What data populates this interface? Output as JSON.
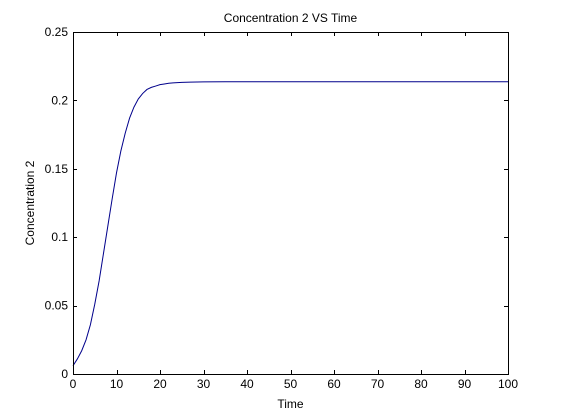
{
  "chart_data": {
    "type": "line",
    "title": "Concentration 2 VS Time",
    "xlabel": "Time",
    "ylabel": "Concentration 2",
    "xlim": [
      0,
      100
    ],
    "ylim": [
      0,
      0.25
    ],
    "grid": false,
    "x_ticks": [
      0,
      10,
      20,
      30,
      40,
      50,
      60,
      70,
      80,
      90,
      100
    ],
    "x_tick_labels": [
      "0",
      "10",
      "20",
      "30",
      "40",
      "50",
      "60",
      "70",
      "80",
      "90",
      "100"
    ],
    "y_ticks": [
      0,
      0.05,
      0.1,
      0.15,
      0.2,
      0.25
    ],
    "y_tick_labels": [
      "0",
      "0.05",
      "0.1",
      "0.15",
      "0.2",
      "0.25"
    ],
    "series": [
      {
        "color": "#00008b",
        "x": [
          0,
          1,
          2,
          3,
          4,
          5,
          6,
          7,
          8,
          9,
          10,
          11,
          12,
          13,
          14,
          15,
          16,
          17,
          18,
          19,
          20,
          21,
          22,
          23,
          24,
          25,
          27,
          30,
          35,
          40,
          50,
          60,
          70,
          80,
          90,
          100
        ],
        "y": [
          0.006,
          0.011,
          0.017,
          0.025,
          0.036,
          0.051,
          0.068,
          0.088,
          0.108,
          0.128,
          0.147,
          0.163,
          0.176,
          0.187,
          0.195,
          0.201,
          0.205,
          0.208,
          0.2095,
          0.2105,
          0.2115,
          0.212,
          0.2125,
          0.2128,
          0.213,
          0.2132,
          0.2134,
          0.2135,
          0.2136,
          0.2136,
          0.2136,
          0.2136,
          0.2136,
          0.2136,
          0.2136,
          0.2136
        ]
      }
    ]
  }
}
